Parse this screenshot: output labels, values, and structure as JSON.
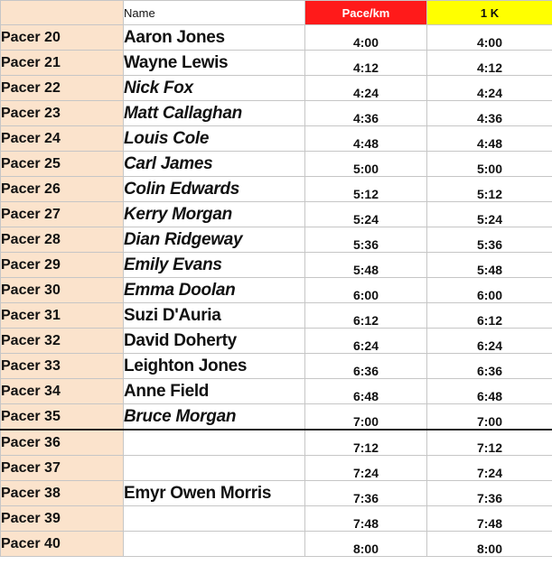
{
  "header": {
    "name_label": "Name",
    "pace_label": "Pace/km",
    "distance_label": "1 K"
  },
  "colors": {
    "pacer_column_bg": "#fbe3cc",
    "pace_header_bg": "#ff1a1a",
    "distance_header_bg": "#ffff00"
  },
  "rows": [
    {
      "pacer": "Pacer 20",
      "name": "Aaron Jones",
      "italic": false,
      "pace": "4:00",
      "time_1k": "4:00"
    },
    {
      "pacer": "Pacer 21",
      "name": "Wayne Lewis",
      "italic": false,
      "pace": "4:12",
      "time_1k": "4:12"
    },
    {
      "pacer": "Pacer 22",
      "name": "Nick Fox",
      "italic": true,
      "pace": "4:24",
      "time_1k": "4:24"
    },
    {
      "pacer": "Pacer 23",
      "name": "Matt Callaghan",
      "italic": true,
      "pace": "4:36",
      "time_1k": "4:36"
    },
    {
      "pacer": "Pacer 24",
      "name": "Louis  Cole",
      "italic": true,
      "pace": "4:48",
      "time_1k": "4:48"
    },
    {
      "pacer": "Pacer 25",
      "name": "Carl James",
      "italic": true,
      "pace": "5:00",
      "time_1k": "5:00"
    },
    {
      "pacer": "Pacer 26",
      "name": "Colin Edwards",
      "italic": true,
      "pace": "5:12",
      "time_1k": "5:12"
    },
    {
      "pacer": "Pacer  27",
      "name": "Kerry Morgan",
      "italic": true,
      "pace": "5:24",
      "time_1k": "5:24"
    },
    {
      "pacer": "Pacer 28",
      "name": "Dian Ridgeway",
      "italic": true,
      "pace": "5:36",
      "time_1k": "5:36"
    },
    {
      "pacer": "Pacer 29",
      "name": "Emily Evans",
      "italic": true,
      "pace": "5:48",
      "time_1k": "5:48"
    },
    {
      "pacer": "Pacer 30",
      "name": "Emma Doolan",
      "italic": true,
      "pace": "6:00",
      "time_1k": "6:00"
    },
    {
      "pacer": "Pacer 31",
      "name": "Suzi D'Auria",
      "italic": false,
      "pace": "6:12",
      "time_1k": "6:12"
    },
    {
      "pacer": "Pacer 32",
      "name": "David Doherty",
      "italic": false,
      "pace": "6:24",
      "time_1k": "6:24"
    },
    {
      "pacer": "Pacer 33",
      "name": "Leighton Jones",
      "italic": false,
      "pace": "6:36",
      "time_1k": "6:36"
    },
    {
      "pacer": "Pacer 34",
      "name": "Anne Field",
      "italic": false,
      "pace": "6:48",
      "time_1k": "6:48"
    },
    {
      "pacer": "Pacer 35",
      "name": "Bruce Morgan",
      "italic": true,
      "pace": "7:00",
      "time_1k": "7:00"
    },
    {
      "pacer": "Pacer 36",
      "name": "",
      "italic": false,
      "pace": "7:12",
      "time_1k": "7:12"
    },
    {
      "pacer": "Pacer 37",
      "name": "",
      "italic": false,
      "pace": "7:24",
      "time_1k": "7:24"
    },
    {
      "pacer": "Pacer 38",
      "name": "Emyr Owen Morris",
      "italic": false,
      "pace": "7:36",
      "time_1k": "7:36"
    },
    {
      "pacer": "Pacer 39",
      "name": "",
      "italic": false,
      "pace": "7:48",
      "time_1k": "7:48"
    },
    {
      "pacer": "Pacer 40",
      "name": "",
      "italic": false,
      "pace": "8:00",
      "time_1k": "8:00"
    }
  ]
}
